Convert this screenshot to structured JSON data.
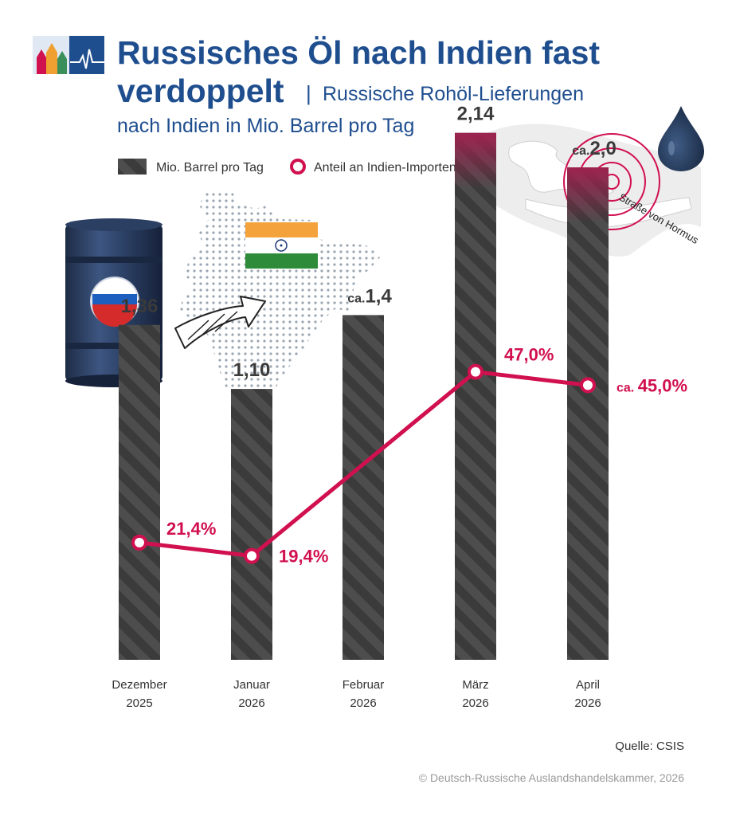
{
  "header": {
    "title_line1": "Russisches Öl nach Indien fast",
    "title_line2": "verdoppelt",
    "separator": "|",
    "subtitle_line1": "Russische Rohöl-Lieferungen",
    "subtitle_line2": "nach Indien in Mio. Barrel pro Tag"
  },
  "legend": {
    "bar_label": "Mio. Barrel pro Tag",
    "line_label": "Anteil an Indien-Importen"
  },
  "map_label": "Straße von Hormus",
  "chart_data": {
    "type": "bar",
    "categories": [
      [
        "Dezember",
        "2025"
      ],
      [
        "Januar",
        "2026"
      ],
      [
        "Februar",
        "2026"
      ],
      [
        "März",
        "2026"
      ],
      [
        "April",
        "2026"
      ]
    ],
    "series": [
      {
        "name": "Mio. Barrel pro Tag",
        "type": "bar",
        "values": [
          1.36,
          1.1,
          1.4,
          2.14,
          2.0
        ],
        "labels": [
          "1,36",
          "1,10",
          "1,4",
          "2,14",
          "2,0"
        ],
        "approx": [
          false,
          false,
          true,
          false,
          true
        ]
      },
      {
        "name": "Anteil an Indien-Importen",
        "type": "line",
        "values": [
          21.4,
          19.4,
          null,
          47.0,
          45.0
        ],
        "labels": [
          "21,4%",
          "19,4%",
          "",
          "47,0%",
          "45,0%"
        ],
        "approx": [
          false,
          false,
          false,
          false,
          true
        ]
      }
    ],
    "approx_prefix": "ca.",
    "ylim": [
      0,
      2.14
    ],
    "colors": {
      "bar": "#3b3b3b",
      "bar_top": "#8a1f45",
      "line": "#d1104f"
    }
  },
  "footer": {
    "source": "Quelle: CSIS",
    "copyright": "© Deutsch-Russische Auslandshandelskammer, 2026"
  }
}
